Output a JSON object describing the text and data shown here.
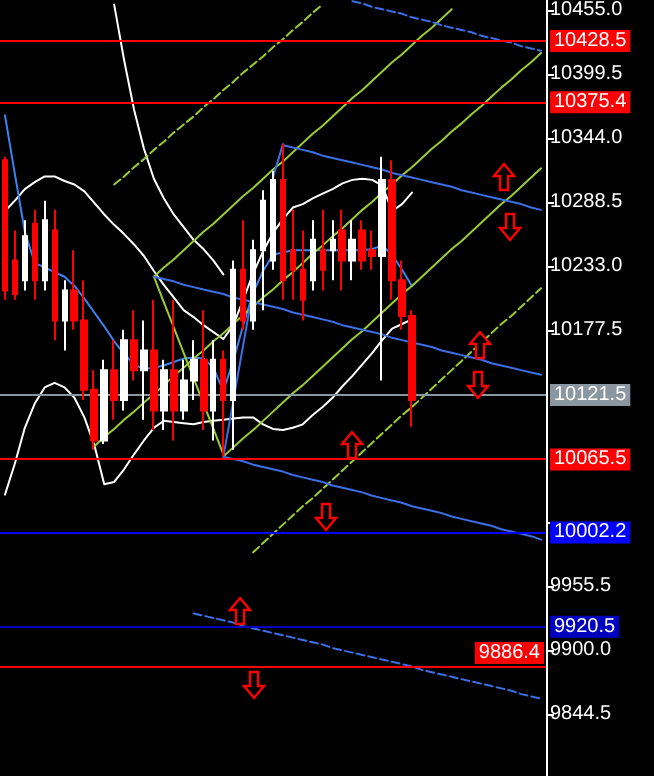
{
  "chart_data": {
    "type": "candlestick",
    "categories": [
      null,
      null,
      null,
      null,
      null,
      null,
      null,
      null,
      null,
      null,
      null,
      null,
      null,
      null,
      null,
      null,
      null,
      null,
      null,
      null,
      null,
      null,
      null,
      null,
      null,
      null,
      null,
      null,
      null,
      null,
      null,
      null,
      null,
      null,
      null,
      null,
      null,
      null,
      null,
      null,
      null,
      null,
      null,
      null,
      null,
      null,
      null,
      null,
      null,
      null,
      null,
      null,
      null,
      null,
      null
    ],
    "ohlc": [
      [
        10325,
        10328,
        10204,
        10212
      ],
      [
        10238,
        10264,
        10204,
        10209
      ],
      [
        10221,
        10273,
        10212,
        10259
      ],
      [
        10270,
        10282,
        10204,
        10221
      ],
      [
        10221,
        10290,
        10212,
        10273
      ],
      [
        10264,
        10282,
        10169,
        10186
      ],
      [
        10186,
        10221,
        10160,
        10212
      ],
      [
        10212,
        10247,
        10178,
        10186
      ],
      [
        10186,
        10221,
        10117,
        10126
      ],
      [
        10126,
        10143,
        10074,
        10082
      ],
      [
        10082,
        10152,
        10079,
        10143
      ],
      [
        10143,
        10169,
        10100,
        10117
      ],
      [
        10117,
        10178,
        10108,
        10169
      ],
      [
        10169,
        10195,
        10134,
        10143
      ],
      [
        10143,
        10186,
        10100,
        10160
      ],
      [
        10160,
        10204,
        10091,
        10108
      ],
      [
        10108,
        10152,
        10091,
        10143
      ],
      [
        10143,
        10204,
        10082,
        10108
      ],
      [
        10108,
        10152,
        10100,
        10134
      ],
      [
        10134,
        10169,
        10117,
        10152
      ],
      [
        10152,
        10195,
        10091,
        10108
      ],
      [
        10108,
        10169,
        10082,
        10152
      ],
      [
        10152,
        10160,
        10068,
        10117
      ],
      [
        10117,
        10238,
        10074,
        10230
      ],
      [
        10230,
        10273,
        10178,
        10186
      ],
      [
        10186,
        10256,
        10178,
        10247
      ],
      [
        10247,
        10299,
        10195,
        10290
      ],
      [
        10238,
        10316,
        10230,
        10308
      ],
      [
        10308,
        10339,
        10204,
        10221
      ],
      [
        10247,
        10282,
        10204,
        10230
      ],
      [
        10230,
        10264,
        10186,
        10204
      ],
      [
        10221,
        10273,
        10212,
        10256
      ],
      [
        10247,
        10282,
        10212,
        10230
      ],
      [
        10247,
        10273,
        10221,
        10256
      ],
      [
        10264,
        10282,
        10212,
        10238
      ],
      [
        10238,
        10273,
        10221,
        10256
      ],
      [
        10264,
        10273,
        10230,
        10238
      ],
      [
        10247,
        10264,
        10230,
        10242
      ],
      [
        10242,
        10328,
        10134,
        10308
      ],
      [
        10308,
        10325,
        10204,
        10221
      ],
      [
        10221,
        10238,
        10178,
        10190
      ],
      [
        10190,
        10195,
        10094,
        10117
      ],
      null,
      null,
      null,
      null,
      null,
      null,
      null,
      null,
      null,
      null,
      null,
      null,
      null
    ],
    "colors": [
      "#ff0000",
      "#ff0000",
      "#ffffff",
      "#ff0000",
      "#ffffff",
      "#ff0000",
      "#ffffff",
      "#ff0000",
      "#ff0000",
      "#ff0000",
      "#ffffff",
      "#ff0000",
      "#ffffff",
      "#ff0000",
      "#ffffff",
      "#ff0000",
      "#ffffff",
      "#ff0000",
      "#ffffff",
      "#ffffff",
      "#ff0000",
      "#ffffff",
      "#ff0000",
      "#ffffff",
      "#ff0000",
      "#ffffff",
      "#ffffff",
      "#ffffff",
      "#ff0000",
      "#ff0000",
      "#ff0000",
      "#ffffff",
      "#ff0000",
      "#ffffff",
      "#ff0000",
      "#ffffff",
      "#ff0000",
      "#ff0000",
      "#ffffff",
      "#ff0000",
      "#ff0000",
      "#ff0000",
      null,
      null,
      null,
      null,
      null,
      null,
      null,
      null,
      null,
      null,
      null,
      null,
      null
    ],
    "series": [
      {
        "type": "line",
        "color": "#ffffff",
        "values": [
          10281,
          10290,
          10300,
          10306,
          10311,
          10311,
          10307,
          10304,
          10298,
          10288,
          10278,
          10269,
          10261,
          10252,
          10242,
          10229,
          10217,
          10206,
          10195,
          10189,
          10182,
          10176,
          10170,
          10182,
          10204,
          10227,
          10246,
          10262,
          10274,
          10284,
          10287,
          10292,
          10296,
          10300,
          10305,
          10308,
          10309,
          10308,
          10303,
          10281,
          10287,
          10297,
          null,
          null,
          null,
          null,
          null,
          null,
          null,
          null,
          null,
          null,
          null,
          null,
          null
        ]
      },
      {
        "type": "line",
        "color": "#ffffff",
        "values": [
          null,
          null,
          null,
          null,
          null,
          null,
          null,
          null,
          null,
          null,
          null,
          10460,
          10412,
          10369,
          10335,
          10309,
          10292,
          10278,
          10267,
          10256,
          10248,
          10238,
          10226,
          null,
          null,
          null,
          null,
          null,
          null,
          null,
          null,
          null,
          null,
          null,
          null,
          null,
          null,
          null,
          null,
          null,
          null,
          null,
          null,
          null,
          null,
          null,
          null,
          null,
          null,
          null,
          null,
          null,
          null,
          null,
          null
        ]
      },
      {
        "type": "line",
        "color": "#ffffff",
        "values": [
          10035,
          10062,
          10093,
          10114,
          10128,
          10132,
          10128,
          10119,
          10102,
          10078,
          10044,
          10046,
          10057,
          10070,
          10082,
          10093,
          10099,
          10098,
          10097,
          10096,
          10098,
          10099,
          10100,
          10101,
          10102,
          10102,
          10096,
          10092,
          10091,
          10093,
          10096,
          10104,
          10111,
          10119,
          10129,
          10138,
          10148,
          10158,
          10169,
          10179,
          10183,
          10187,
          null,
          null,
          null,
          null,
          null,
          null,
          null,
          null,
          null,
          null,
          null,
          null,
          null
        ]
      },
      {
        "type": "line",
        "color": "#3c82f0",
        "values": [
          10364,
          10313,
          10263,
          10236,
          10232,
          10228,
          10224,
          10216,
          10205,
          10193,
          10181,
          10168,
          10157,
          10148,
          10144,
          10145,
          10147,
          10150,
          10153,
          10154,
          10153,
          10145,
          10125,
          10151,
          10182,
          10210,
          10229,
          10243,
          10245,
          10247,
          10247,
          10247,
          10247,
          10247,
          10247,
          10247,
          10247,
          10248,
          10251,
          10243,
          10230,
          10216,
          null,
          null,
          null,
          null,
          null,
          null,
          null,
          null,
          null,
          null,
          null,
          null,
          null
        ]
      },
      {
        "type": "line",
        "color": "#9acd32",
        "values": [
          null,
          null,
          null,
          null,
          null,
          null,
          null,
          null,
          null,
          null,
          null,
          null,
          null,
          null,
          null,
          10224,
          10232,
          10239,
          10247,
          10255,
          10263,
          10270,
          10278,
          10286,
          10294,
          10301,
          10309,
          10317,
          10324,
          10332,
          10340,
          10348,
          10355,
          10363,
          10371,
          10379,
          10386,
          10394,
          10402,
          10410,
          10417,
          10425,
          10433,
          10440,
          10448,
          10456,
          null,
          null,
          null,
          null,
          null,
          null,
          null,
          null,
          null
        ]
      },
      {
        "type": "line",
        "color": "#9acd32",
        "values": [
          null,
          null,
          null,
          null,
          null,
          null,
          null,
          null,
          null,
          10077,
          10085,
          10092,
          10100,
          10107,
          10115,
          10122,
          10130,
          10138,
          10145,
          10153,
          10160,
          10168,
          10175,
          10183,
          10191,
          10198,
          10206,
          10213,
          10221,
          10228,
          10236,
          10244,
          10251,
          10259,
          10266,
          10274,
          10282,
          10289,
          10297,
          10304,
          10312,
          10319,
          10327,
          10335,
          10342,
          10350,
          10357,
          10365,
          10372,
          10380,
          10388,
          10395,
          10403,
          10410,
          10418
        ]
      },
      {
        "type": "line",
        "color": "#9acd32",
        "values": [
          null,
          null,
          null,
          null,
          null,
          null,
          null,
          null,
          null,
          null,
          null,
          null,
          null,
          null,
          null,
          null,
          null,
          null,
          null,
          null,
          null,
          null,
          10068,
          10076,
          10084,
          10091,
          10099,
          10107,
          10115,
          10123,
          10130,
          10138,
          10146,
          10154,
          10162,
          10170,
          10177,
          10185,
          10193,
          10201,
          10209,
          10216,
          10224,
          10232,
          10240,
          10248,
          10255,
          10263,
          10271,
          10279,
          10287,
          10294,
          10302,
          10310,
          10318
        ]
      },
      {
        "type": "line",
        "color": "#9acd32",
        "values": [
          null,
          null,
          null,
          null,
          null,
          null,
          null,
          null,
          null,
          null,
          null,
          null,
          null,
          null,
          null,
          10224,
          10202,
          10180,
          10158,
          10136,
          10114,
          10092,
          10070,
          null,
          null,
          null,
          null,
          null,
          null,
          null,
          null,
          null,
          null,
          null,
          null,
          null,
          null,
          null,
          null,
          null,
          null,
          null,
          null,
          null,
          null,
          null,
          null,
          null,
          null,
          null,
          null,
          null,
          null,
          null,
          null
        ]
      },
      {
        "type": "line",
        "color": "#9acd32",
        "line_style": "dashed",
        "values": [
          null,
          null,
          null,
          null,
          null,
          null,
          null,
          null,
          null,
          null,
          null,
          10304,
          10311,
          10319,
          10326,
          10334,
          10341,
          10349,
          10356,
          10363,
          10371,
          10378,
          10386,
          10393,
          10401,
          10408,
          10415,
          10423,
          10430,
          10438,
          10445,
          10453,
          10460,
          null,
          null,
          null,
          null,
          null,
          null,
          null,
          null,
          null,
          null,
          null,
          null,
          null,
          null,
          null,
          null,
          null,
          null,
          null,
          null,
          null,
          null
        ]
      },
      {
        "type": "line",
        "color": "#9acd32",
        "line_style": "dashed",
        "values": [
          null,
          null,
          null,
          null,
          null,
          null,
          null,
          null,
          null,
          null,
          null,
          null,
          null,
          null,
          null,
          null,
          null,
          null,
          null,
          null,
          null,
          null,
          null,
          null,
          null,
          9985,
          9993,
          10001,
          10009,
          10017,
          10025,
          10032,
          10040,
          10048,
          10056,
          10064,
          10072,
          10080,
          10088,
          10096,
          10104,
          10111,
          10119,
          10127,
          10135,
          10143,
          10151,
          10159,
          10167,
          10175,
          10183,
          10190,
          10198,
          10206,
          10214
        ]
      },
      {
        "type": "line",
        "color": "#3c6ee6",
        "values": [
          null,
          null,
          null,
          null,
          null,
          null,
          null,
          null,
          null,
          null,
          null,
          null,
          null,
          null,
          null,
          null,
          null,
          null,
          null,
          null,
          null,
          null,
          null,
          null,
          null,
          null,
          null,
          null,
          10338,
          10336,
          10334,
          10332,
          10329,
          10327,
          10325,
          10323,
          10321,
          10319,
          10317,
          10314,
          10312,
          10310,
          10308,
          10306,
          10304,
          10302,
          10299,
          10297,
          10295,
          10293,
          10291,
          10289,
          10287,
          10284,
          10282
        ]
      },
      {
        "type": "line",
        "color": "#3c6ee6",
        "values": [
          null,
          null,
          null,
          null,
          null,
          null,
          null,
          null,
          null,
          null,
          null,
          null,
          null,
          null,
          null,
          10224,
          10222,
          10220,
          10217,
          10215,
          10213,
          10211,
          10209,
          10206,
          10204,
          10202,
          10200,
          10198,
          10196,
          10193,
          10191,
          10189,
          10187,
          10185,
          10182,
          10180,
          10178,
          10176,
          10174,
          10171,
          10169,
          10167,
          10165,
          10163,
          10160,
          10158,
          10156,
          10154,
          10152,
          10149,
          10147,
          10145,
          10143,
          10141,
          10139
        ]
      },
      {
        "type": "line",
        "color": "#3c6ee6",
        "values": [
          null,
          null,
          null,
          null,
          null,
          null,
          null,
          null,
          null,
          null,
          null,
          null,
          null,
          null,
          null,
          null,
          null,
          null,
          null,
          null,
          null,
          null,
          10068,
          10066,
          10064,
          10061,
          10059,
          10057,
          10055,
          10052,
          10050,
          10048,
          10046,
          10043,
          10041,
          10039,
          10037,
          10034,
          10032,
          10030,
          10028,
          10025,
          10023,
          10021,
          10019,
          10016,
          10014,
          10012,
          10010,
          10008,
          10005,
          10003,
          10001,
          9999,
          9996
        ]
      },
      {
        "type": "line",
        "color": "#3c6ee6",
        "values": [
          null,
          null,
          null,
          null,
          null,
          null,
          null,
          null,
          null,
          null,
          null,
          null,
          null,
          null,
          null,
          null,
          null,
          null,
          null,
          null,
          null,
          null,
          10068,
          10116,
          10165,
          10213,
          null,
          10310,
          10339,
          null,
          null,
          null,
          null,
          null,
          null,
          null,
          null,
          null,
          null,
          null,
          null,
          null,
          null,
          null,
          null,
          null,
          null,
          null,
          null,
          null,
          null,
          null,
          null,
          null,
          null
        ]
      },
      {
        "type": "line",
        "color": "#3c6ee6",
        "line_style": "dashed",
        "values": [
          null,
          null,
          null,
          null,
          null,
          null,
          null,
          null,
          null,
          null,
          null,
          null,
          null,
          null,
          null,
          null,
          null,
          null,
          null,
          null,
          null,
          null,
          null,
          null,
          null,
          null,
          null,
          null,
          null,
          null,
          null,
          null,
          null,
          null,
          null,
          10463,
          10461,
          10458,
          10456,
          10454,
          10452,
          10449,
          10447,
          10445,
          10442,
          10440,
          10438,
          10436,
          10433,
          10431,
          10429,
          10427,
          10424,
          10422,
          10420
        ]
      },
      {
        "type": "line",
        "color": "#3c6ee6",
        "line_style": "dashed",
        "values": [
          null,
          null,
          null,
          null,
          null,
          null,
          null,
          null,
          null,
          null,
          null,
          null,
          null,
          null,
          null,
          null,
          null,
          null,
          null,
          9932,
          9930,
          9928,
          9926,
          9924,
          9921,
          9919,
          9917,
          9915,
          9913,
          9911,
          9909,
          9907,
          9905,
          9902,
          9900,
          9898,
          9896,
          9894,
          9892,
          9890,
          9888,
          9886,
          9883,
          9881,
          9879,
          9877,
          9875,
          9873,
          9871,
          9869,
          9867,
          9865,
          9862,
          9860,
          9858
        ]
      }
    ],
    "ylim": [
      9791,
      10464
    ],
    "yticks": [
      {
        "value": 10455,
        "label": "10455.0"
      },
      {
        "value": 10399.5,
        "label": "10399.5"
      },
      {
        "value": 10344,
        "label": "10344.0"
      },
      {
        "value": 10288.5,
        "label": "10288.5"
      },
      {
        "value": 10233,
        "label": "10233.0"
      },
      {
        "value": 10177.5,
        "label": "10177.5"
      },
      {
        "value": 10011,
        "label": null
      },
      {
        "value": 9955.5,
        "label": "9955.5"
      },
      {
        "value": 9900,
        "label": "9900.0"
      },
      {
        "value": 9844.5,
        "label": "9844.5"
      }
    ],
    "ref_lines": [
      {
        "axis": "y",
        "value": 10428.5,
        "label": "10428.5",
        "color": "#ff0000"
      },
      {
        "axis": "y",
        "value": 10375.4,
        "label": "10375.4",
        "color": "#ff0000"
      },
      {
        "axis": "y",
        "value": 10121.5,
        "label": "10121.5",
        "color": "#8a96a0"
      },
      {
        "axis": "y",
        "value": 10065.5,
        "label": "10065.5",
        "color": "#ff0000"
      },
      {
        "axis": "y",
        "value": 10002.2,
        "label": "10002.2",
        "color": "#0000ff"
      },
      {
        "axis": "y",
        "value": 9920.5,
        "label": "9920.5",
        "color": "#0000c0"
      },
      {
        "axis": "y",
        "value": 9886.4,
        "label": "9886.4",
        "color": "#ff0000"
      }
    ],
    "grid": false,
    "tick_labels": "y"
  }
}
